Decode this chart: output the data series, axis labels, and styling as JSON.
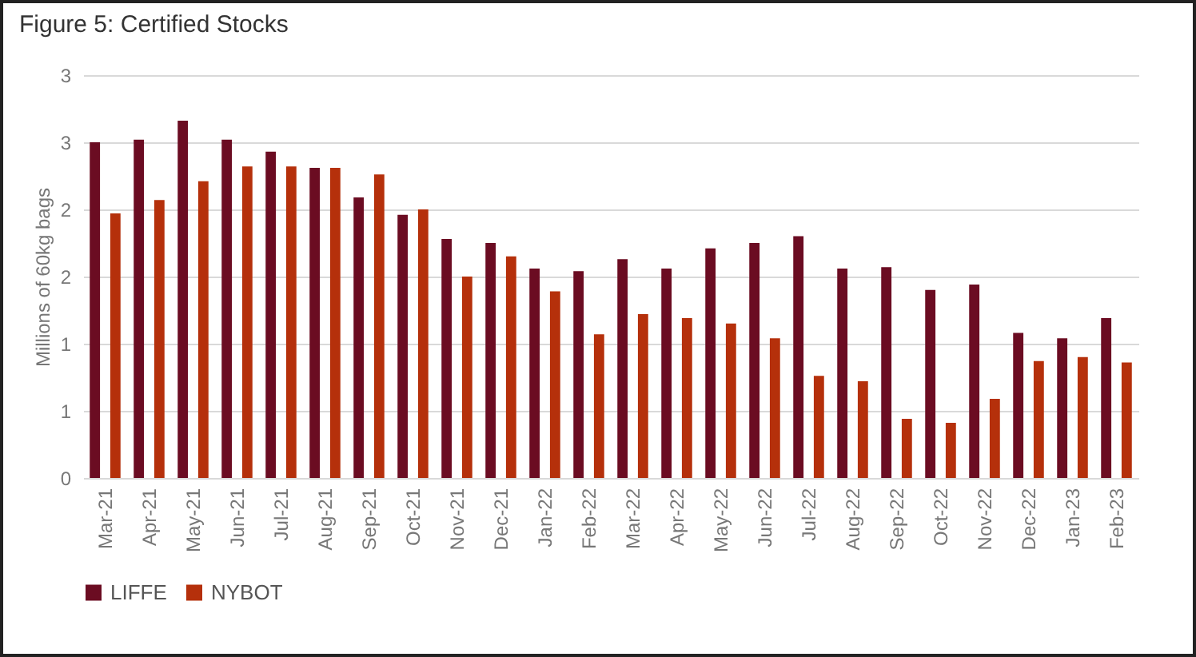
{
  "chart_data": {
    "type": "bar",
    "title": "Figure 5: Certified Stocks",
    "ylabel": "Millions of 60kg bags",
    "categories": [
      "Mar-21",
      "Apr-21",
      "May-21",
      "Jun-21",
      "Jul-21",
      "Aug-21",
      "Sep-21",
      "Oct-21",
      "Nov-21",
      "Dec-21",
      "Jan-22",
      "Feb-22",
      "Mar-22",
      "Apr-22",
      "May-22",
      "Jun-22",
      "Jul-22",
      "Aug-22",
      "Sep-22",
      "Oct-22",
      "Nov-22",
      "Dec-22",
      "Jan-23",
      "Feb-23"
    ],
    "series": [
      {
        "name": "LIFFE",
        "color": "#6b0c22",
        "values": [
          2.5,
          2.52,
          2.66,
          2.52,
          2.43,
          2.31,
          2.09,
          1.96,
          1.78,
          1.75,
          1.56,
          1.54,
          1.63,
          1.56,
          1.71,
          1.75,
          1.8,
          1.56,
          1.57,
          1.4,
          1.44,
          1.08,
          1.04,
          1.19
        ]
      },
      {
        "name": "NYBOT",
        "color": "#b5300b",
        "values": [
          1.97,
          2.07,
          2.21,
          2.32,
          2.32,
          2.31,
          2.26,
          2.0,
          1.5,
          1.65,
          1.39,
          1.07,
          1.22,
          1.19,
          1.15,
          1.04,
          0.76,
          0.72,
          0.44,
          0.41,
          0.59,
          0.87,
          0.9,
          0.86
        ]
      }
    ],
    "ylim": [
      0,
      3
    ],
    "yticks": [
      0,
      {
        "value": 0.5,
        "label": "1"
      },
      1,
      {
        "value": 1.5,
        "label": "2"
      },
      2,
      {
        "value": 2.5,
        "label": "3"
      },
      3
    ],
    "grid": "y",
    "legend": "bottom"
  }
}
